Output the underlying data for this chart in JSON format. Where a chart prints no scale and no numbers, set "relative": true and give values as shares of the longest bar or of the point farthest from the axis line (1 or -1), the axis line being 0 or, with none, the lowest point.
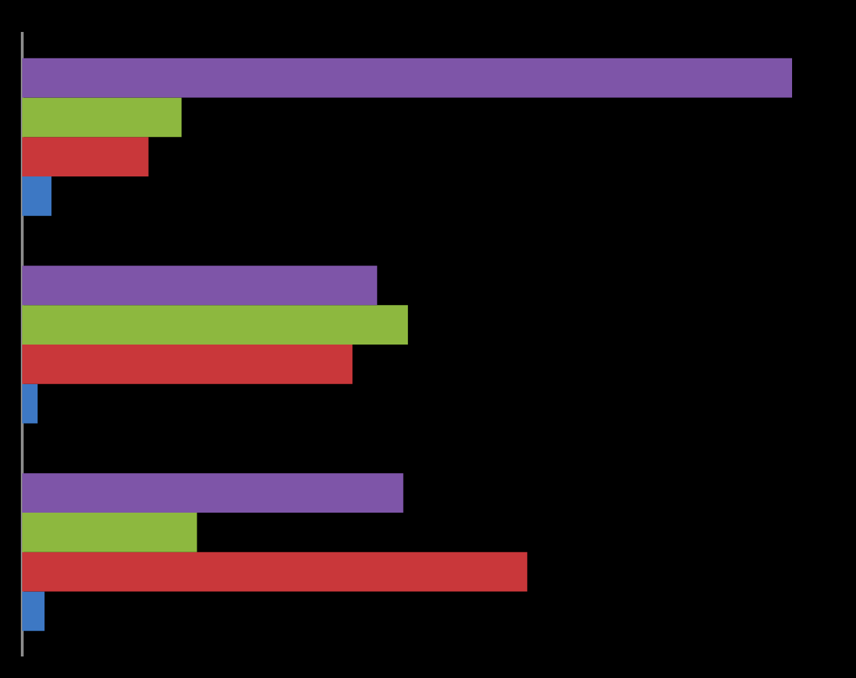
{
  "chart_data": {
    "type": "bar",
    "orientation": "horizontal",
    "relative": true,
    "legend": false,
    "categories": [
      null,
      null,
      null
    ],
    "series": [
      {
        "color": "#7e55a8",
        "values": [
          1.0,
          0.461,
          0.495
        ]
      },
      {
        "color": "#8db83f",
        "values": [
          0.207,
          0.501,
          0.227
        ]
      },
      {
        "color": "#c9373a",
        "values": [
          0.164,
          0.429,
          0.656
        ]
      },
      {
        "color": "#3d78c4",
        "values": [
          0.038,
          0.02,
          0.029
        ]
      }
    ]
  }
}
